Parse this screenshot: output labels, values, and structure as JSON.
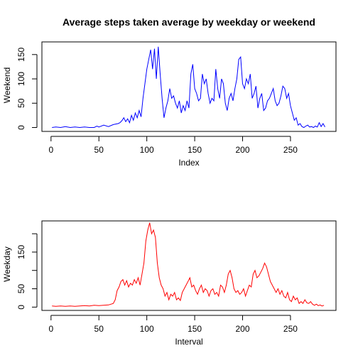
{
  "chart_data": [
    {
      "type": "line",
      "title": "Average steps taken average by weekday or weekend",
      "xlabel": "Index",
      "ylabel": "Weekend",
      "xlim": [
        -9.5,
        297.5
      ],
      "ylim": [
        -8,
        176
      ],
      "x_ticks": [
        "0",
        "50",
        "100",
        "150",
        "200",
        "250"
      ],
      "x_tick_values": [
        0,
        50,
        100,
        150,
        200,
        250
      ],
      "y_ticks": [
        "0",
        "50",
        "100",
        "150"
      ],
      "y_tick_values": [
        0,
        50,
        100,
        150
      ],
      "color": "#0000ff",
      "series": [
        {
          "x": [
            1,
            5,
            10,
            15,
            20,
            25,
            30,
            35,
            40,
            45,
            48,
            50,
            55,
            60,
            65,
            70,
            72,
            74,
            76,
            78,
            80,
            82,
            84,
            86,
            88,
            90,
            92,
            94,
            96,
            98,
            100,
            102,
            104,
            106,
            108,
            110,
            112,
            114,
            116,
            118,
            120,
            122,
            124,
            126,
            128,
            130,
            132,
            134,
            136,
            138,
            140,
            142,
            144,
            146,
            148,
            150,
            152,
            154,
            156,
            158,
            160,
            162,
            164,
            166,
            168,
            170,
            172,
            174,
            176,
            178,
            180,
            182,
            184,
            186,
            188,
            190,
            192,
            194,
            196,
            198,
            200,
            202,
            204,
            206,
            208,
            210,
            212,
            214,
            216,
            218,
            220,
            222,
            224,
            226,
            228,
            230,
            232,
            234,
            236,
            238,
            240,
            242,
            244,
            246,
            248,
            250,
            252,
            254,
            256,
            258,
            260,
            262,
            264,
            266,
            268,
            270,
            272,
            274,
            276,
            278,
            280,
            282,
            284,
            286
          ],
          "y": [
            0,
            1,
            0,
            2,
            0,
            1,
            0,
            1,
            0,
            0,
            3,
            1,
            5,
            2,
            6,
            8,
            10,
            14,
            20,
            12,
            18,
            10,
            25,
            15,
            30,
            20,
            35,
            22,
            60,
            90,
            120,
            140,
            160,
            120,
            162,
            100,
            166,
            110,
            60,
            20,
            40,
            55,
            80,
            60,
            65,
            50,
            40,
            55,
            30,
            45,
            35,
            55,
            40,
            110,
            130,
            80,
            70,
            55,
            60,
            110,
            90,
            100,
            70,
            50,
            60,
            55,
            120,
            80,
            60,
            100,
            90,
            50,
            35,
            60,
            70,
            55,
            80,
            100,
            140,
            145,
            90,
            80,
            100,
            90,
            110,
            60,
            70,
            85,
            40,
            60,
            70,
            35,
            40,
            55,
            60,
            70,
            80,
            55,
            45,
            50,
            65,
            85,
            80,
            60,
            70,
            45,
            30,
            15,
            20,
            5,
            8,
            2,
            0,
            3,
            5,
            1,
            2,
            0,
            3,
            1,
            10,
            2,
            8,
            1
          ]
        }
      ]
    },
    {
      "type": "line",
      "title": "",
      "xlabel": "Interval",
      "ylabel": "Weekday",
      "xlim": [
        -9.5,
        297.5
      ],
      "ylim": [
        -9,
        235
      ],
      "x_ticks": [
        "0",
        "50",
        "100",
        "150",
        "200",
        "250"
      ],
      "x_tick_values": [
        0,
        50,
        100,
        150,
        200,
        250
      ],
      "y_ticks": [
        "0",
        "50",
        "150"
      ],
      "y_tick_values": [
        0,
        50,
        150
      ],
      "y_minor_tick_values": [
        100,
        200
      ],
      "color": "#ff0000",
      "series": [
        {
          "x": [
            1,
            5,
            10,
            15,
            20,
            25,
            30,
            35,
            40,
            45,
            50,
            55,
            60,
            65,
            67,
            69,
            71,
            73,
            75,
            77,
            79,
            81,
            83,
            85,
            87,
            89,
            91,
            93,
            95,
            97,
            99,
            101,
            103,
            105,
            107,
            109,
            111,
            113,
            115,
            117,
            119,
            121,
            123,
            125,
            127,
            129,
            131,
            133,
            135,
            137,
            139,
            141,
            143,
            145,
            147,
            149,
            151,
            153,
            155,
            157,
            159,
            161,
            163,
            165,
            167,
            169,
            171,
            173,
            175,
            177,
            179,
            181,
            183,
            185,
            187,
            189,
            191,
            193,
            195,
            197,
            199,
            201,
            203,
            205,
            207,
            209,
            211,
            213,
            215,
            217,
            219,
            221,
            223,
            225,
            227,
            229,
            231,
            233,
            235,
            237,
            239,
            241,
            243,
            245,
            247,
            249,
            251,
            253,
            255,
            257,
            259,
            261,
            263,
            265,
            267,
            269,
            271,
            273,
            275,
            277,
            279,
            281,
            283,
            285
          ],
          "y": [
            3,
            2,
            3,
            2,
            3,
            2,
            3,
            4,
            3,
            5,
            4,
            5,
            6,
            10,
            20,
            45,
            55,
            70,
            75,
            60,
            72,
            55,
            65,
            60,
            75,
            65,
            80,
            60,
            90,
            120,
            180,
            210,
            230,
            200,
            210,
            190,
            120,
            80,
            60,
            50,
            30,
            40,
            20,
            35,
            30,
            40,
            20,
            25,
            18,
            40,
            50,
            60,
            70,
            80,
            55,
            60,
            45,
            35,
            50,
            60,
            40,
            50,
            45,
            30,
            45,
            50,
            35,
            40,
            30,
            60,
            55,
            40,
            60,
            90,
            100,
            80,
            50,
            40,
            45,
            35,
            40,
            50,
            30,
            45,
            60,
            55,
            90,
            100,
            80,
            85,
            95,
            105,
            120,
            110,
            90,
            70,
            60,
            50,
            40,
            50,
            35,
            45,
            30,
            25,
            40,
            20,
            15,
            30,
            20,
            25,
            10,
            15,
            10,
            20,
            12,
            10,
            15,
            8,
            5,
            8,
            4,
            6,
            3,
            5
          ]
        }
      ]
    }
  ]
}
